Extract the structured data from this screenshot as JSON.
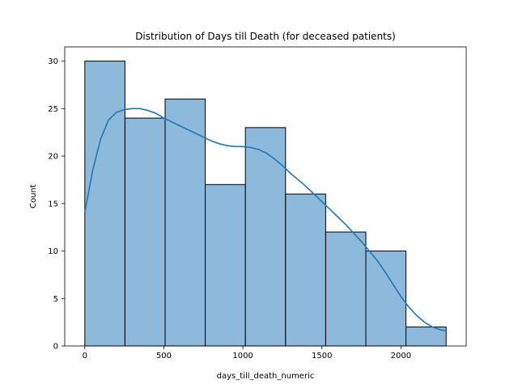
{
  "chart_data": {
    "type": "bar",
    "title": "Distribution of Days till Death (for deceased patients)",
    "xlabel": "days_till_death_numeric",
    "ylabel": "Count",
    "xlim": [
      -127,
      2413
    ],
    "ylim": [
      0,
      31.5
    ],
    "x_ticks": [
      0,
      500,
      1000,
      1500,
      2000
    ],
    "y_ticks": [
      0,
      5,
      10,
      15,
      20,
      25,
      30
    ],
    "bins": [
      {
        "start": 0,
        "end": 254,
        "count": 30
      },
      {
        "start": 254,
        "end": 508,
        "count": 24
      },
      {
        "start": 508,
        "end": 762,
        "count": 26
      },
      {
        "start": 762,
        "end": 1016,
        "count": 17
      },
      {
        "start": 1016,
        "end": 1270,
        "count": 23
      },
      {
        "start": 1270,
        "end": 1524,
        "count": 16
      },
      {
        "start": 1524,
        "end": 1778,
        "count": 12
      },
      {
        "start": 1778,
        "end": 2032,
        "count": 10
      },
      {
        "start": 2032,
        "end": 2286,
        "count": 2
      }
    ],
    "kde": [
      [
        0,
        14.1
      ],
      [
        50,
        18.5
      ],
      [
        100,
        21.8
      ],
      [
        150,
        23.8
      ],
      [
        200,
        24.6
      ],
      [
        250,
        24.9
      ],
      [
        300,
        25.0
      ],
      [
        350,
        25.0
      ],
      [
        400,
        24.8
      ],
      [
        450,
        24.5
      ],
      [
        500,
        24.0
      ],
      [
        550,
        23.6
      ],
      [
        600,
        23.2
      ],
      [
        650,
        22.8
      ],
      [
        700,
        22.4
      ],
      [
        750,
        22.0
      ],
      [
        800,
        21.6
      ],
      [
        850,
        21.3
      ],
      [
        900,
        21.1
      ],
      [
        950,
        21.0
      ],
      [
        1000,
        21.0
      ],
      [
        1050,
        20.9
      ],
      [
        1100,
        20.7
      ],
      [
        1150,
        20.3
      ],
      [
        1200,
        19.7
      ],
      [
        1250,
        19.0
      ],
      [
        1300,
        18.2
      ],
      [
        1350,
        17.5
      ],
      [
        1400,
        16.8
      ],
      [
        1450,
        16.0
      ],
      [
        1500,
        15.2
      ],
      [
        1550,
        14.4
      ],
      [
        1600,
        13.6
      ],
      [
        1650,
        12.8
      ],
      [
        1700,
        11.9
      ],
      [
        1750,
        11.0
      ],
      [
        1800,
        10.0
      ],
      [
        1850,
        9.0
      ],
      [
        1900,
        7.8
      ],
      [
        1950,
        6.5
      ],
      [
        2000,
        5.2
      ],
      [
        2050,
        4.1
      ],
      [
        2100,
        3.2
      ],
      [
        2150,
        2.5
      ],
      [
        2200,
        2.0
      ],
      [
        2250,
        1.7
      ],
      [
        2286,
        1.6
      ]
    ],
    "bar_color": "#8db9db",
    "bar_edge_color": "#000000",
    "line_color": "#1f77b4",
    "grid": false
  }
}
